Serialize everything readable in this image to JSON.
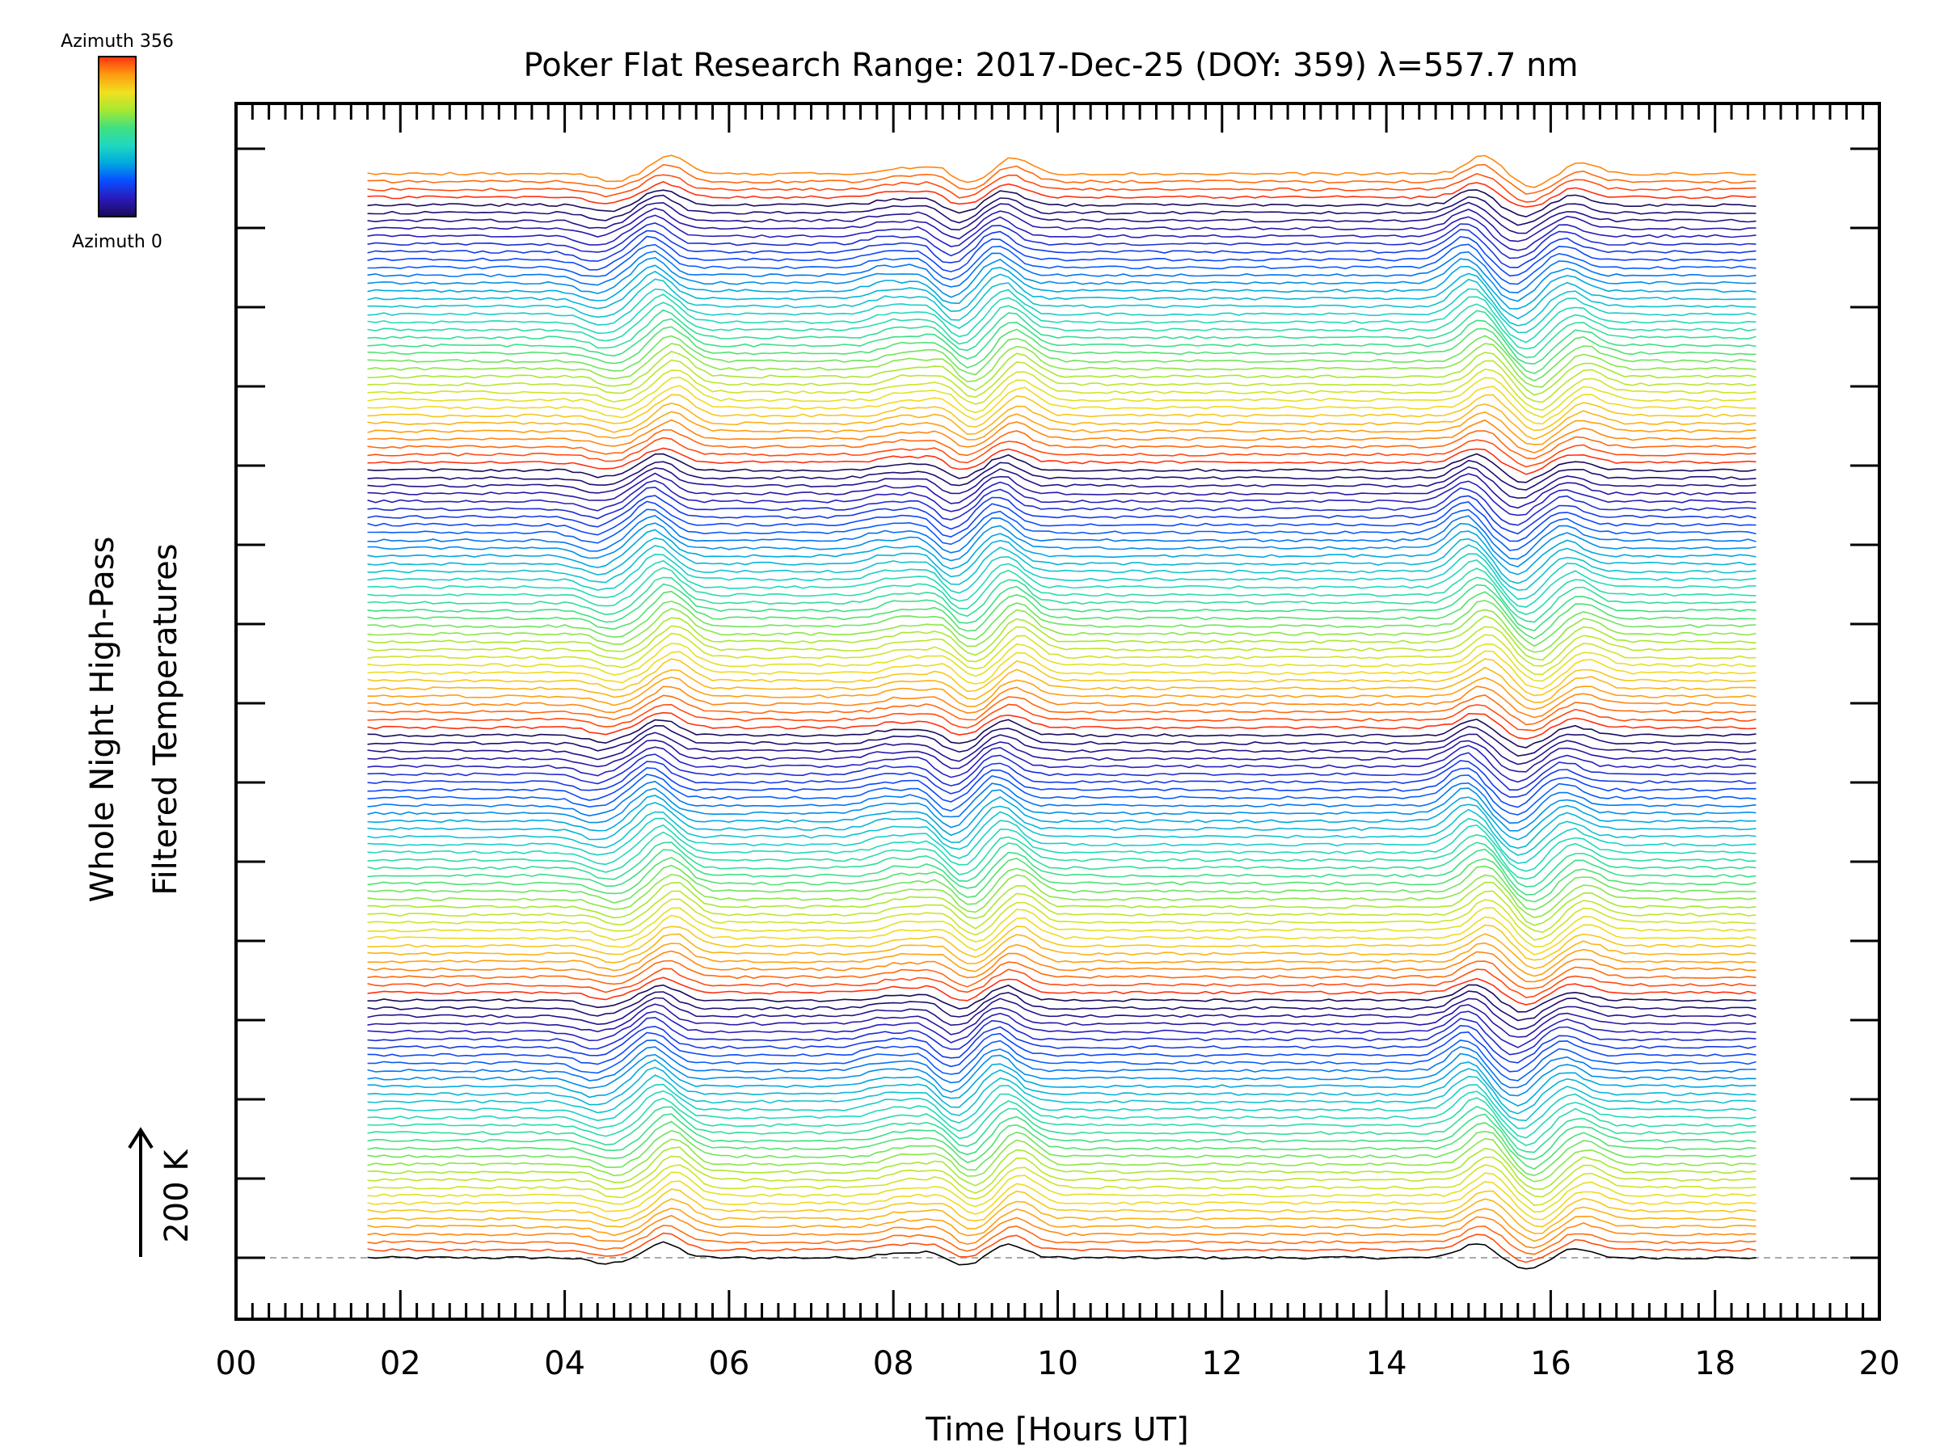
{
  "chart_data": {
    "type": "line",
    "title": "Poker Flat Research Range: 2017-Dec-25 (DOY: 359) λ=557.7 nm",
    "xlabel": "Time [Hours UT]",
    "ylabel_lines": [
      "Whole Night High-Pass",
      "Filtered Temperatures"
    ],
    "scale_label": "200 K",
    "xlim": [
      0,
      20
    ],
    "x_tick_labels": [
      "00",
      "02",
      "04",
      "06",
      "08",
      "10",
      "12",
      "14",
      "16",
      "18",
      "20"
    ],
    "colorbar": {
      "top_label": "Azimuth 356",
      "bottom_label": "Azimuth 0",
      "colors": [
        "#1a0a5a",
        "#2a1ab8",
        "#0a4cff",
        "#00a8e0",
        "#20d8c0",
        "#40e080",
        "#a8e830",
        "#f0e020",
        "#ff9a10",
        "#ff3010"
      ]
    },
    "grid": false,
    "series_count": 140,
    "time_range": [
      1.6,
      18.5
    ],
    "series_offset_K": 50,
    "features": [
      {
        "t": 4.5,
        "amp": -25
      },
      {
        "t": 5.2,
        "amp": 60
      },
      {
        "t": 8.0,
        "amp": 20
      },
      {
        "t": 8.5,
        "amp": 30
      },
      {
        "t": 8.8,
        "amp": -40
      },
      {
        "t": 9.4,
        "amp": 55
      },
      {
        "t": 15.1,
        "amp": 60
      },
      {
        "t": 15.7,
        "amp": -45
      },
      {
        "t": 16.3,
        "amp": 35
      }
    ]
  }
}
